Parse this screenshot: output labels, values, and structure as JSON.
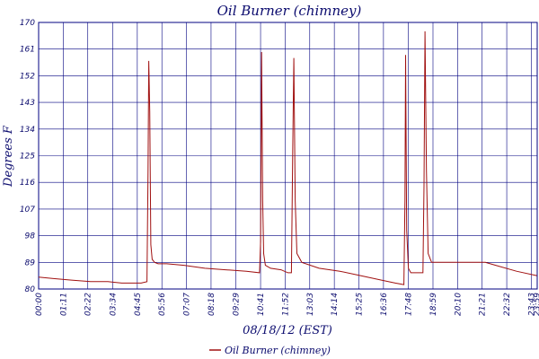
{
  "chart_data": {
    "type": "line",
    "title": "Oil Burner (chimney)",
    "xlabel": "08/18/12 (EST)",
    "ylabel": "Degrees F",
    "ylim": [
      80,
      170
    ],
    "xlim_minutes": [
      0,
      1440
    ],
    "grid": true,
    "legend_position": "bottom-center",
    "y_ticks": [
      "80",
      "89",
      "98",
      "107",
      "116",
      "125",
      "134",
      "143",
      "152",
      "161",
      "170"
    ],
    "x_ticks": [
      "00:00",
      "01:11",
      "02:22",
      "03:34",
      "04:45",
      "05:56",
      "07:07",
      "08:18",
      "09:29",
      "10:41",
      "11:52",
      "13:03",
      "14:14",
      "15:25",
      "16:36",
      "17:48",
      "18:59",
      "20:10",
      "21:21",
      "22:32",
      "23:43",
      "23:59"
    ],
    "series": [
      {
        "name": "Oil Burner (chimney)",
        "color": "#a01010",
        "x_time": [
          "00:00",
          "00:43",
          "01:35",
          "02:30",
          "03:20",
          "04:00",
          "04:41",
          "04:56",
          "05:13",
          "05:16",
          "05:18",
          "05:21",
          "05:24",
          "05:28",
          "05:35",
          "05:45",
          "06:10",
          "07:00",
          "08:00",
          "09:00",
          "10:00",
          "10:38",
          "10:41",
          "10:44",
          "10:47",
          "10:50",
          "10:55",
          "11:10",
          "11:40",
          "12:00",
          "12:10",
          "12:14",
          "12:17",
          "12:21",
          "12:26",
          "12:40",
          "13:30",
          "14:30",
          "15:30",
          "16:30",
          "17:10",
          "17:35",
          "17:38",
          "17:40",
          "17:43",
          "17:48",
          "17:55",
          "18:20",
          "18:30",
          "18:33",
          "18:36",
          "18:40",
          "18:45",
          "18:55",
          "19:10",
          "20:00",
          "21:00",
          "21:30",
          "22:00",
          "23:00",
          "23:59"
        ],
        "y": [
          84,
          83.5,
          83,
          82.5,
          82.5,
          82,
          82,
          82,
          82.5,
          120,
          157,
          140,
          95,
          90,
          89,
          88.5,
          88.5,
          88,
          87,
          86.5,
          86,
          85.5,
          96,
          160,
          110,
          92,
          88,
          87,
          86.5,
          85.5,
          85.5,
          128,
          158,
          110,
          92,
          89,
          87,
          86,
          84.5,
          83,
          82,
          81.5,
          110,
          159,
          100,
          87,
          85.5,
          85.5,
          85.5,
          115,
          167,
          120,
          92,
          89,
          89,
          89,
          89,
          89,
          88,
          86,
          84.5
        ]
      }
    ]
  }
}
